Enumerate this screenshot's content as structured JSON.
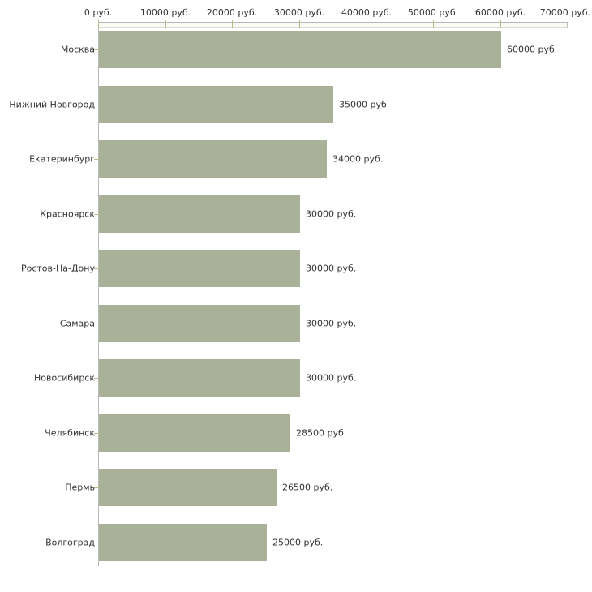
{
  "chart_data": {
    "type": "bar",
    "orientation": "horizontal",
    "title": "",
    "categories": [
      "Москва",
      "Нижний Новгород",
      "Екатеринбург",
      "Красноярск",
      "Ростов-На-Дону",
      "Самара",
      "Новосибирск",
      "Челябинск",
      "Пермь",
      "Волгоград"
    ],
    "values": [
      60000,
      35000,
      34000,
      30000,
      30000,
      30000,
      30000,
      28500,
      26500,
      25000
    ],
    "value_labels": [
      "60000 руб.",
      "35000 руб.",
      "34000 руб.",
      "30000 руб.",
      "30000 руб.",
      "30000 руб.",
      "30000 руб.",
      "28500 руб.",
      "26500 руб.",
      "25000 руб."
    ],
    "x_tick_values": [
      0,
      10000,
      20000,
      30000,
      40000,
      50000,
      60000,
      70000
    ],
    "x_tick_labels": [
      "0 руб.",
      "10000 руб.",
      "20000 руб.",
      "30000 руб.",
      "40000 руб.",
      "50000 руб.",
      "60000 руб.",
      "70000 руб."
    ],
    "xlim": [
      0,
      70000
    ],
    "unit": "руб.",
    "grid": false,
    "legend": false,
    "axis_position": "top",
    "colors": {
      "bar": "#aab199",
      "axis_line": "#b8b8b8",
      "axis_band_fill": "#fafaf4",
      "tick": "#b9b98c",
      "text": "#333333",
      "background": "#ffffff"
    }
  }
}
